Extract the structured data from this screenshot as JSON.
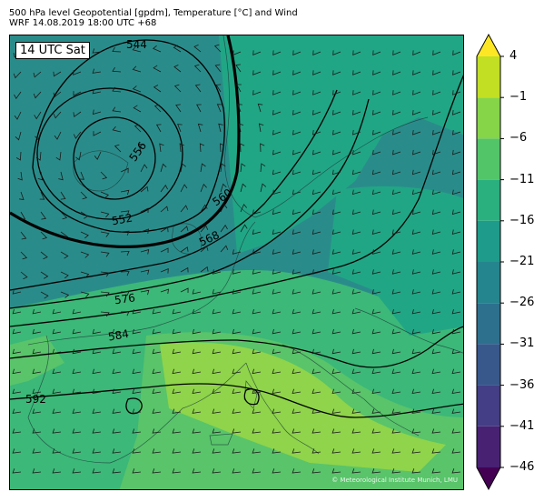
{
  "title_line1": "500 hPa level Geopotential [gpdm], Temperature [°C] and Wind",
  "title_line2": "WRF 14.08.2019 18:00 UTC +68",
  "time_label": "14 UTC Sat",
  "copyright": "© Meteorological Institute Munich, LMU",
  "contour_labels": [
    "544",
    "556",
    "552",
    "560",
    "568",
    "576",
    "584",
    "592"
  ],
  "colorbar": {
    "ticks": [
      "4",
      "−1",
      "−6",
      "−11",
      "−16",
      "−21",
      "−26",
      "−31",
      "−36",
      "−41",
      "−46"
    ],
    "colors": [
      "#440154",
      "#482173",
      "#433e85",
      "#38588c",
      "#2d708e",
      "#25858e",
      "#1e9b8a",
      "#2ab07f",
      "#52c569",
      "#86d549",
      "#c2df23",
      "#fde725"
    ]
  },
  "temperature_colors": {
    "cold": "#2a8c8a",
    "cool": "#21a685",
    "mild": "#3cb878",
    "warm": "#59c46a",
    "hot": "#8fd44a"
  }
}
